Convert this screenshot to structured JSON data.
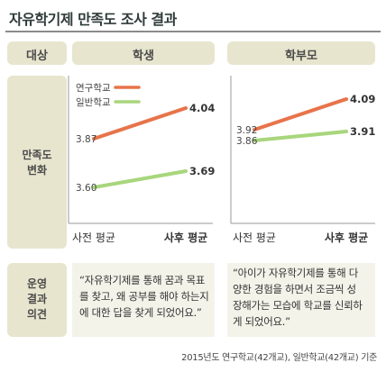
{
  "title": "자유학기제 만족도 조사 결과",
  "header": {
    "category": "대상",
    "col1": "학생",
    "col2": "학부모"
  },
  "row_satisfaction": {
    "label_line1": "만족도",
    "label_line2": "변화"
  },
  "row_opinion": {
    "label_line1": "운영",
    "label_line2": "결과",
    "label_line3": "의견"
  },
  "quotes": {
    "student": [
      "“자유학기제를 통해 꿈과 목표",
      "를 찾고, 왜 공부를 해야 하는지",
      "에 대한 답을 찾게 되었어요.”"
    ],
    "parent": [
      "“아이가 자유학기제를 통해 다",
      "양한 경험을 하면서 조금씩 성",
      "장해가는 모습에 학교를 신뢰하",
      "게 되었어요.”"
    ]
  },
  "footer": "2015년도 연구학교(42개교), 일반학교(42개교) 기준",
  "colors": {
    "research": "#e8734a",
    "general": "#a8d67c"
  },
  "chart_data": [
    {
      "type": "line",
      "panel": "학생",
      "categories": [
        "사전 평균",
        "사후 평균"
      ],
      "series": [
        {
          "name": "연구학교",
          "values": [
            3.87,
            4.04
          ]
        },
        {
          "name": "일반학교",
          "values": [
            3.6,
            3.69
          ]
        }
      ],
      "legend": "top-left"
    },
    {
      "type": "line",
      "panel": "학부모",
      "categories": [
        "사전 평균",
        "사후 평균"
      ],
      "series": [
        {
          "name": "연구학교",
          "values": [
            3.92,
            4.09
          ]
        },
        {
          "name": "일반학교",
          "values": [
            3.86,
            3.91
          ]
        }
      ]
    }
  ]
}
